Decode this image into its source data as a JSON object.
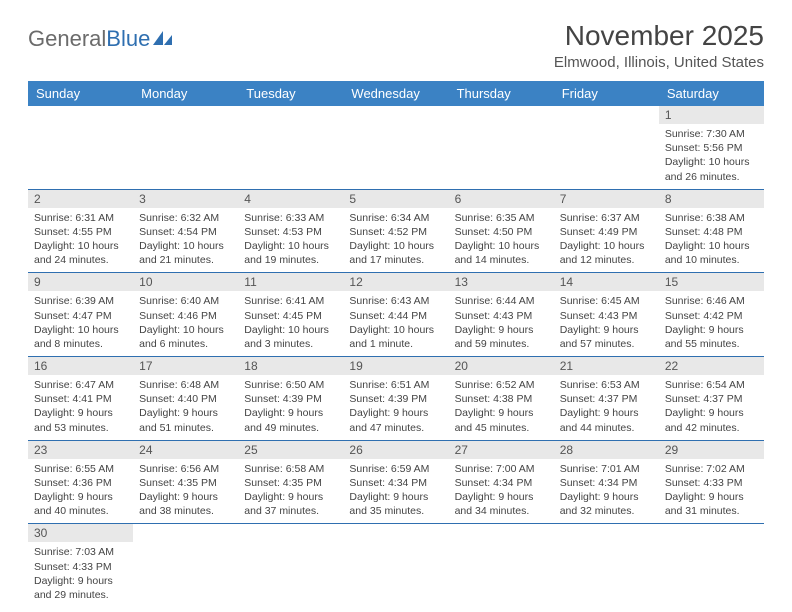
{
  "logo": {
    "text1": "General",
    "text2": "Blue"
  },
  "title": "November 2025",
  "location": "Elmwood, Illinois, United States",
  "header_bg": "#3b82c4",
  "rule_color": "#2f6fb0",
  "daynum_bg": "#e8e8e8",
  "columns": [
    "Sunday",
    "Monday",
    "Tuesday",
    "Wednesday",
    "Thursday",
    "Friday",
    "Saturday"
  ],
  "weeks": [
    [
      null,
      null,
      null,
      null,
      null,
      null,
      {
        "n": "1",
        "sunrise": "Sunrise: 7:30 AM",
        "sunset": "Sunset: 5:56 PM",
        "day": "Daylight: 10 hours and 26 minutes."
      }
    ],
    [
      {
        "n": "2",
        "sunrise": "Sunrise: 6:31 AM",
        "sunset": "Sunset: 4:55 PM",
        "day": "Daylight: 10 hours and 24 minutes."
      },
      {
        "n": "3",
        "sunrise": "Sunrise: 6:32 AM",
        "sunset": "Sunset: 4:54 PM",
        "day": "Daylight: 10 hours and 21 minutes."
      },
      {
        "n": "4",
        "sunrise": "Sunrise: 6:33 AM",
        "sunset": "Sunset: 4:53 PM",
        "day": "Daylight: 10 hours and 19 minutes."
      },
      {
        "n": "5",
        "sunrise": "Sunrise: 6:34 AM",
        "sunset": "Sunset: 4:52 PM",
        "day": "Daylight: 10 hours and 17 minutes."
      },
      {
        "n": "6",
        "sunrise": "Sunrise: 6:35 AM",
        "sunset": "Sunset: 4:50 PM",
        "day": "Daylight: 10 hours and 14 minutes."
      },
      {
        "n": "7",
        "sunrise": "Sunrise: 6:37 AM",
        "sunset": "Sunset: 4:49 PM",
        "day": "Daylight: 10 hours and 12 minutes."
      },
      {
        "n": "8",
        "sunrise": "Sunrise: 6:38 AM",
        "sunset": "Sunset: 4:48 PM",
        "day": "Daylight: 10 hours and 10 minutes."
      }
    ],
    [
      {
        "n": "9",
        "sunrise": "Sunrise: 6:39 AM",
        "sunset": "Sunset: 4:47 PM",
        "day": "Daylight: 10 hours and 8 minutes."
      },
      {
        "n": "10",
        "sunrise": "Sunrise: 6:40 AM",
        "sunset": "Sunset: 4:46 PM",
        "day": "Daylight: 10 hours and 6 minutes."
      },
      {
        "n": "11",
        "sunrise": "Sunrise: 6:41 AM",
        "sunset": "Sunset: 4:45 PM",
        "day": "Daylight: 10 hours and 3 minutes."
      },
      {
        "n": "12",
        "sunrise": "Sunrise: 6:43 AM",
        "sunset": "Sunset: 4:44 PM",
        "day": "Daylight: 10 hours and 1 minute."
      },
      {
        "n": "13",
        "sunrise": "Sunrise: 6:44 AM",
        "sunset": "Sunset: 4:43 PM",
        "day": "Daylight: 9 hours and 59 minutes."
      },
      {
        "n": "14",
        "sunrise": "Sunrise: 6:45 AM",
        "sunset": "Sunset: 4:43 PM",
        "day": "Daylight: 9 hours and 57 minutes."
      },
      {
        "n": "15",
        "sunrise": "Sunrise: 6:46 AM",
        "sunset": "Sunset: 4:42 PM",
        "day": "Daylight: 9 hours and 55 minutes."
      }
    ],
    [
      {
        "n": "16",
        "sunrise": "Sunrise: 6:47 AM",
        "sunset": "Sunset: 4:41 PM",
        "day": "Daylight: 9 hours and 53 minutes."
      },
      {
        "n": "17",
        "sunrise": "Sunrise: 6:48 AM",
        "sunset": "Sunset: 4:40 PM",
        "day": "Daylight: 9 hours and 51 minutes."
      },
      {
        "n": "18",
        "sunrise": "Sunrise: 6:50 AM",
        "sunset": "Sunset: 4:39 PM",
        "day": "Daylight: 9 hours and 49 minutes."
      },
      {
        "n": "19",
        "sunrise": "Sunrise: 6:51 AM",
        "sunset": "Sunset: 4:39 PM",
        "day": "Daylight: 9 hours and 47 minutes."
      },
      {
        "n": "20",
        "sunrise": "Sunrise: 6:52 AM",
        "sunset": "Sunset: 4:38 PM",
        "day": "Daylight: 9 hours and 45 minutes."
      },
      {
        "n": "21",
        "sunrise": "Sunrise: 6:53 AM",
        "sunset": "Sunset: 4:37 PM",
        "day": "Daylight: 9 hours and 44 minutes."
      },
      {
        "n": "22",
        "sunrise": "Sunrise: 6:54 AM",
        "sunset": "Sunset: 4:37 PM",
        "day": "Daylight: 9 hours and 42 minutes."
      }
    ],
    [
      {
        "n": "23",
        "sunrise": "Sunrise: 6:55 AM",
        "sunset": "Sunset: 4:36 PM",
        "day": "Daylight: 9 hours and 40 minutes."
      },
      {
        "n": "24",
        "sunrise": "Sunrise: 6:56 AM",
        "sunset": "Sunset: 4:35 PM",
        "day": "Daylight: 9 hours and 38 minutes."
      },
      {
        "n": "25",
        "sunrise": "Sunrise: 6:58 AM",
        "sunset": "Sunset: 4:35 PM",
        "day": "Daylight: 9 hours and 37 minutes."
      },
      {
        "n": "26",
        "sunrise": "Sunrise: 6:59 AM",
        "sunset": "Sunset: 4:34 PM",
        "day": "Daylight: 9 hours and 35 minutes."
      },
      {
        "n": "27",
        "sunrise": "Sunrise: 7:00 AM",
        "sunset": "Sunset: 4:34 PM",
        "day": "Daylight: 9 hours and 34 minutes."
      },
      {
        "n": "28",
        "sunrise": "Sunrise: 7:01 AM",
        "sunset": "Sunset: 4:34 PM",
        "day": "Daylight: 9 hours and 32 minutes."
      },
      {
        "n": "29",
        "sunrise": "Sunrise: 7:02 AM",
        "sunset": "Sunset: 4:33 PM",
        "day": "Daylight: 9 hours and 31 minutes."
      }
    ],
    [
      {
        "n": "30",
        "sunrise": "Sunrise: 7:03 AM",
        "sunset": "Sunset: 4:33 PM",
        "day": "Daylight: 9 hours and 29 minutes."
      },
      null,
      null,
      null,
      null,
      null,
      null
    ]
  ]
}
